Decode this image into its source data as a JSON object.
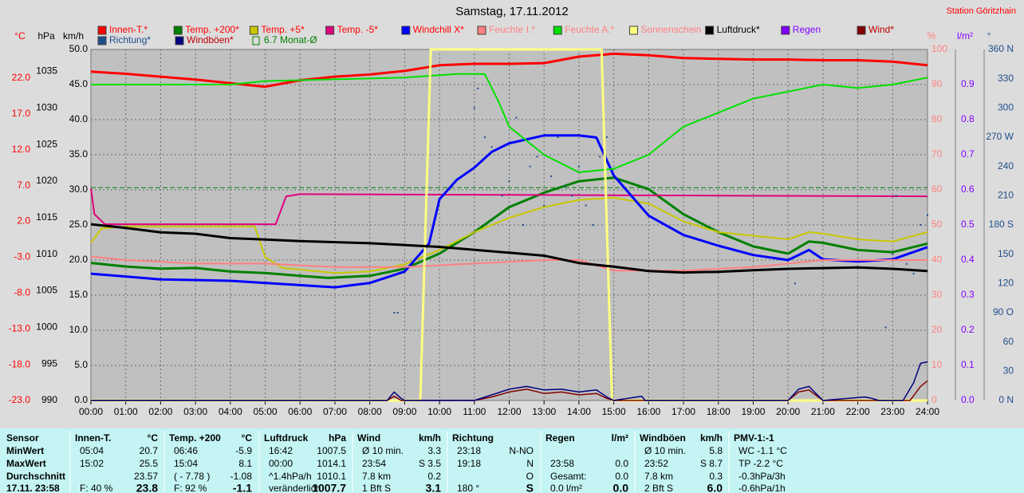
{
  "chart_data": {
    "type": "line",
    "title": "Samstag, 17.11.2012",
    "station": "Station Göritzhain",
    "grid": true,
    "xlim": [
      0,
      24
    ],
    "xticks": [
      {
        "value": 0,
        "label": "00:00"
      },
      {
        "value": 1,
        "label": "01:00"
      },
      {
        "value": 2,
        "label": "02:00"
      },
      {
        "value": 3,
        "label": "03:00"
      },
      {
        "value": 4,
        "label": "04:00"
      },
      {
        "value": 5,
        "label": "05:00"
      },
      {
        "value": 6,
        "label": "06:00"
      },
      {
        "value": 7,
        "label": "07:00"
      },
      {
        "value": 8,
        "label": "08:00"
      },
      {
        "value": 9,
        "label": "09:00"
      },
      {
        "value": 10,
        "label": "10:00"
      },
      {
        "value": 11,
        "label": "11:00"
      },
      {
        "value": 12,
        "label": "12:00"
      },
      {
        "value": 13,
        "label": "13:00"
      },
      {
        "value": 14,
        "label": "14:00"
      },
      {
        "value": 15,
        "label": "15:00"
      },
      {
        "value": 16,
        "label": "16:00"
      },
      {
        "value": 17,
        "label": "17:00"
      },
      {
        "value": 18,
        "label": "18:00"
      },
      {
        "value": 19,
        "label": "19:00"
      },
      {
        "value": 20,
        "label": "20:00"
      },
      {
        "value": 21,
        "label": "21:00"
      },
      {
        "value": 22,
        "label": "22:00"
      },
      {
        "value": 23,
        "label": "23:00"
      },
      {
        "value": 24,
        "label": "24:00"
      }
    ],
    "axes": [
      {
        "label": "°C",
        "color": "#ff0000",
        "lim": [
          -23,
          26
        ],
        "ticks": [
          {
            "value": -23,
            "label": "-23.0"
          },
          {
            "value": -18,
            "label": "-18.0"
          },
          {
            "value": -13,
            "label": "-13.0"
          },
          {
            "value": -8,
            "label": "-8.0"
          },
          {
            "value": -3,
            "label": "-3.0"
          },
          {
            "value": 2,
            "label": "2.0"
          },
          {
            "value": 7,
            "label": "7.0"
          },
          {
            "value": 12,
            "label": "12.0"
          },
          {
            "value": 17,
            "label": "17.0"
          },
          {
            "value": 22,
            "label": "22.0"
          }
        ]
      },
      {
        "label": "hPa",
        "color": "#000000",
        "lim": [
          990,
          1038
        ],
        "ticks": [
          990,
          995,
          1000,
          1005,
          1010,
          1015,
          1020,
          1025,
          1030,
          1035
        ]
      },
      {
        "label": "km/h",
        "color": "#000000",
        "lim": [
          0,
          50
        ],
        "ticks": [
          {
            "value": 0,
            "label": "0.0"
          },
          {
            "value": 5,
            "label": "5.0"
          },
          {
            "value": 10,
            "label": "10.0"
          },
          {
            "value": 15,
            "label": "15.0"
          },
          {
            "value": 20,
            "label": "20.0"
          },
          {
            "value": 25,
            "label": "25.0"
          },
          {
            "value": 30,
            "label": "30.0"
          },
          {
            "value": 35,
            "label": "35.0"
          },
          {
            "value": 40,
            "label": "40.0"
          },
          {
            "value": 45,
            "label": "45.0"
          },
          {
            "value": 50,
            "label": "50.0"
          }
        ]
      },
      {
        "label": "%",
        "color": "#ff8080",
        "lim": [
          0,
          100
        ],
        "ticks": [
          0,
          10,
          20,
          30,
          40,
          50,
          60,
          70,
          80,
          90,
          100
        ]
      },
      {
        "label": "l/m²",
        "color": "#8000ff",
        "lim": [
          0,
          1
        ],
        "ticks": [
          {
            "value": 0,
            "label": "0.0"
          },
          {
            "value": 0.1,
            "label": "0.1"
          },
          {
            "value": 0.2,
            "label": "0.2"
          },
          {
            "value": 0.3,
            "label": "0.3"
          },
          {
            "value": 0.4,
            "label": "0.4"
          },
          {
            "value": 0.5,
            "label": "0.5"
          },
          {
            "value": 0.6,
            "label": "0.6"
          },
          {
            "value": 0.7,
            "label": "0.7"
          },
          {
            "value": 0.8,
            "label": "0.8"
          },
          {
            "value": 0.9,
            "label": "0.9"
          }
        ]
      },
      {
        "label": "°",
        "color": "#1f4e8c",
        "lim": [
          0,
          360
        ],
        "ticks": [
          {
            "value": 0,
            "label": "0 N"
          },
          30,
          60,
          {
            "value": 90,
            "label": "90 O"
          },
          120,
          150,
          {
            "value": 180,
            "label": "180 S"
          },
          210,
          240,
          {
            "value": 270,
            "label": "270 W"
          },
          300,
          330,
          {
            "value": 360,
            "label": "360 N"
          }
        ]
      }
    ],
    "series": [
      {
        "name": "Innen-T.*",
        "type": "line",
        "axis": 0,
        "color": "#ff0000",
        "label_color": "#ff0000",
        "x": [
          0,
          1,
          2,
          3,
          4,
          5,
          6,
          7,
          8,
          9,
          10,
          11,
          12,
          13,
          14,
          15,
          16,
          17,
          18,
          19,
          20,
          21,
          22,
          23,
          24
        ],
        "values": [
          22.9,
          22.6,
          22.2,
          21.8,
          21.3,
          20.8,
          21.7,
          22.2,
          22.5,
          23.0,
          23.8,
          24.0,
          24.0,
          24.1,
          25.0,
          25.4,
          25.2,
          24.8,
          24.7,
          24.6,
          24.6,
          24.5,
          24.5,
          24.3,
          23.8
        ]
      },
      {
        "name": "Temp. +200*",
        "type": "line",
        "axis": 0,
        "color": "#008000",
        "label_color": "#ff0000",
        "x": [
          0,
          1,
          2,
          3,
          4,
          5,
          6,
          6.8,
          8,
          9,
          10,
          11,
          12,
          13,
          14,
          15,
          16,
          17,
          18,
          19,
          20,
          20.6,
          21,
          22,
          23,
          24
        ],
        "values": [
          -3.8,
          -4.3,
          -4.6,
          -4.5,
          -5.0,
          -5.2,
          -5.6,
          -5.9,
          -5.6,
          -4.6,
          -2.5,
          0.5,
          4.0,
          6.0,
          7.6,
          8.1,
          6.5,
          3.0,
          0.5,
          -1.5,
          -2.5,
          -0.8,
          -1.0,
          -2.0,
          -2.3,
          -1.1
        ]
      },
      {
        "name": "Temp. +5*",
        "type": "line",
        "axis": 0,
        "color": "#c8c800",
        "label_color": "#ff0000",
        "x": [
          0,
          0.3,
          1,
          2,
          3,
          4,
          4.7,
          5,
          5.5,
          7,
          8,
          9,
          10,
          11,
          12,
          13,
          14,
          15,
          16,
          17,
          18,
          19,
          20,
          20.6,
          21,
          22,
          23,
          24
        ],
        "values": [
          -1.0,
          1.0,
          1.3,
          1.3,
          1.3,
          1.3,
          1.3,
          -3.0,
          -4.5,
          -5.2,
          -5.0,
          -4.0,
          -2.0,
          0.5,
          2.5,
          4.0,
          5.0,
          5.3,
          4.5,
          2.0,
          0.5,
          0.0,
          -0.5,
          0.5,
          0.3,
          -0.5,
          -0.8,
          0.5
        ]
      },
      {
        "name": "Temp. -5*",
        "type": "line",
        "axis": 0,
        "color": "#e0007f",
        "label_color": "#ff0000",
        "x": [
          0,
          0.1,
          0.4,
          5.3,
          5.6,
          6,
          12,
          18,
          24
        ],
        "values": [
          6.6,
          3.0,
          1.6,
          1.6,
          5.5,
          5.8,
          5.7,
          5.6,
          5.5
        ]
      },
      {
        "name": "Windchill X*",
        "type": "line",
        "axis": 0,
        "color": "#0000ff",
        "label_color": "#ff0000",
        "x": [
          0,
          2,
          4,
          7,
          8,
          9,
          9.7,
          10,
          10.5,
          11,
          11.5,
          12,
          13,
          14,
          14.5,
          15,
          16,
          17,
          18,
          19,
          20,
          20.6,
          21,
          22,
          23,
          24
        ],
        "values": [
          -5.3,
          -6.1,
          -6.3,
          -7.2,
          -6.6,
          -5.0,
          -1.1,
          5.1,
          7.8,
          9.5,
          11.7,
          12.9,
          14.0,
          14.0,
          13.7,
          8.4,
          2.8,
          0.1,
          -1.4,
          -2.7,
          -3.4,
          -2.0,
          -3.3,
          -3.6,
          -3.3,
          -1.6
        ]
      },
      {
        "name": "Feuchte I.*",
        "type": "line",
        "axis": 3,
        "color": "#ff8080",
        "label_color": "#ff8080",
        "x": [
          0,
          1,
          3,
          5,
          7,
          9,
          11,
          13,
          14,
          15,
          16,
          17,
          19,
          21,
          23,
          24
        ],
        "values": [
          41,
          40,
          39,
          39,
          38,
          38,
          39,
          40,
          40,
          37,
          37,
          37,
          38,
          40,
          40,
          40
        ]
      },
      {
        "name": "Feuchte A.*",
        "type": "line",
        "axis": 3,
        "color": "#00e000",
        "label_color": "#ff8080",
        "x": [
          0,
          4,
          5,
          9,
          10.5,
          11.3,
          11.7,
          12,
          13,
          14,
          15,
          16,
          17,
          18,
          19,
          20,
          21,
          22,
          23,
          24
        ],
        "values": [
          90,
          90,
          91,
          92,
          93,
          93,
          85,
          78,
          70,
          65,
          66,
          70,
          78,
          82,
          86,
          88,
          90,
          89,
          90,
          92
        ]
      },
      {
        "name": "Sonnenschein",
        "type": "line",
        "axis": 3,
        "color": "#ffff80",
        "label_color": "#ff8080",
        "x": [
          0,
          9.45,
          9.75,
          14.65,
          14.95,
          24
        ],
        "values": [
          0,
          0,
          100,
          100,
          0,
          0
        ]
      },
      {
        "name": "Luftdruck*",
        "type": "line",
        "axis": 1,
        "color": "#000000",
        "label_color": "#000000",
        "x": [
          0,
          1,
          2,
          3,
          4,
          5,
          6,
          8,
          10,
          12,
          13,
          14,
          15,
          16,
          17,
          18,
          19,
          20,
          21,
          22,
          23,
          24
        ],
        "values": [
          1014.1,
          1013.6,
          1013.0,
          1012.8,
          1012.2,
          1012.0,
          1011.8,
          1011.5,
          1011.0,
          1010.2,
          1009.8,
          1008.8,
          1008.3,
          1007.7,
          1007.5,
          1007.6,
          1007.8,
          1008.0,
          1008.1,
          1008.2,
          1008.0,
          1007.7
        ]
      },
      {
        "name": "Regen",
        "type": "line",
        "axis": 4,
        "color": "#8000ff",
        "label_color": "#8000ff",
        "x": [],
        "values": []
      },
      {
        "name": "Wind*",
        "type": "line",
        "axis": 2,
        "color": "#800000",
        "label_color": "#c00000",
        "x": [
          0,
          8.5,
          8.7,
          8.9,
          9.0,
          11.0,
          11.5,
          12.0,
          12.5,
          13.0,
          13.5,
          14.0,
          14.5,
          14.8,
          15.0,
          20.0,
          20.3,
          20.6,
          21.0,
          23.5,
          23.8,
          24.0
        ],
        "values": [
          0,
          0,
          0.6,
          0,
          0,
          0,
          0.5,
          1.2,
          1.6,
          1.0,
          1.2,
          0.8,
          1.0,
          0.3,
          0,
          0,
          1.2,
          1.5,
          0,
          0,
          2.0,
          2.8
        ]
      },
      {
        "name": "Richtung*",
        "type": "scatter",
        "axis": 5,
        "color": "#1f4e8c",
        "label_color": "#1f4e8c",
        "x": [
          8.7,
          8.8,
          11.0,
          11.1,
          11.3,
          11.5,
          11.8,
          12.0,
          12.2,
          12.4,
          12.6,
          12.8,
          13.0,
          13.2,
          13.4,
          13.6,
          13.8,
          14.0,
          14.2,
          14.4,
          14.6,
          14.8,
          20.2,
          20.4,
          22.8,
          23.0,
          23.1,
          23.4,
          23.6,
          23.8,
          24.0
        ],
        "values": [
          90,
          90,
          300,
          320,
          270,
          260,
          210,
          225,
          290,
          180,
          240,
          250,
          200,
          230,
          270,
          220,
          210,
          240,
          200,
          180,
          250,
          270,
          120,
          150,
          75,
          150,
          210,
          140,
          130,
          180,
          190
        ]
      },
      {
        "name": "Windböen*",
        "type": "line",
        "axis": 2,
        "color": "#000080",
        "label_color": "#c00000",
        "x": [
          0,
          8.5,
          8.7,
          8.9,
          9.0,
          11.0,
          11.5,
          12.0,
          12.5,
          13.0,
          13.5,
          14.0,
          14.5,
          14.8,
          15.0,
          15.8,
          15.9,
          16.0,
          20.0,
          20.3,
          20.6,
          21.0,
          22.2,
          22.4,
          22.6,
          23.3,
          23.6,
          23.8,
          24.0
        ],
        "values": [
          0,
          0,
          1.2,
          0.3,
          0,
          0,
          0.8,
          1.6,
          2.0,
          1.5,
          1.6,
          1.2,
          1.5,
          0.5,
          0,
          0.6,
          0,
          0,
          0,
          1.6,
          2.0,
          0,
          0.5,
          0.3,
          0,
          0,
          2.5,
          5.3,
          5.5
        ]
      }
    ],
    "reference_line": {
      "label": "6.7 Monat-Ø",
      "value": 6.7,
      "axis": 0,
      "color": "#008000"
    }
  },
  "table": {
    "header": "Sensor",
    "rows": [
      "MinWert",
      "MaxWert",
      "Durchschnitt",
      "17.11. 23:58"
    ],
    "columns": [
      {
        "header": "Innen-T.",
        "unit": "°C",
        "cells": [
          [
            "05:04",
            "20.7"
          ],
          [
            "15:02",
            "25.5"
          ],
          [
            null,
            "23.57"
          ],
          [
            "F: 40 %",
            "23.8"
          ]
        ]
      },
      {
        "header": "Temp. +200",
        "unit": "°C",
        "cells": [
          [
            "06:46",
            "-5.9"
          ],
          [
            "15:04",
            "8.1"
          ],
          [
            "( - 7.78 )",
            "-1.08"
          ],
          [
            "F: 92 %",
            "-1.1"
          ]
        ]
      },
      {
        "header": "Luftdruck",
        "unit": "hPa",
        "cells": [
          [
            "16:42",
            "1007.5"
          ],
          [
            "00:00",
            "1014.1"
          ],
          [
            "^1.4hPa/h",
            "1010.1"
          ],
          [
            "veränderlich",
            "1007.7"
          ]
        ]
      },
      {
        "header": "Wind",
        "unit": "km/h",
        "cells": [
          [
            "Ø 10 min.",
            "3.3"
          ],
          [
            "23:54",
            "S 3.5"
          ],
          [
            "7.8 km",
            "0.2"
          ],
          [
            "1 Bft S",
            "3.1"
          ]
        ]
      },
      {
        "header": "Richtung",
        "unit": null,
        "cells": [
          [
            "23:18",
            "N-NO"
          ],
          [
            "19:18",
            "N"
          ],
          [
            null,
            "O"
          ],
          [
            "180 °",
            "S"
          ]
        ]
      },
      {
        "header": "Regen",
        "unit": "l/m²",
        "cells": [
          [
            null,
            null
          ],
          [
            "23:58",
            "0.0"
          ],
          [
            "Gesamt:",
            "0.0"
          ],
          [
            "0.0 l/m²",
            "0.0"
          ]
        ]
      },
      {
        "header": "Windböen",
        "unit": "km/h",
        "cells": [
          [
            "Ø 10 min.",
            "5.8"
          ],
          [
            "23:52",
            "S 8.7"
          ],
          [
            "7.8 km",
            "0.3"
          ],
          [
            "2 Bft S",
            "6.0"
          ]
        ]
      },
      {
        "header": "PMV-1:-1",
        "unit": null,
        "cells": [
          [
            "WC -1.1 °C"
          ],
          [
            "TP -2.2 °C"
          ],
          [
            "-0.3hPa/3h"
          ],
          [
            "-0.6hPa/1h"
          ]
        ]
      }
    ]
  }
}
